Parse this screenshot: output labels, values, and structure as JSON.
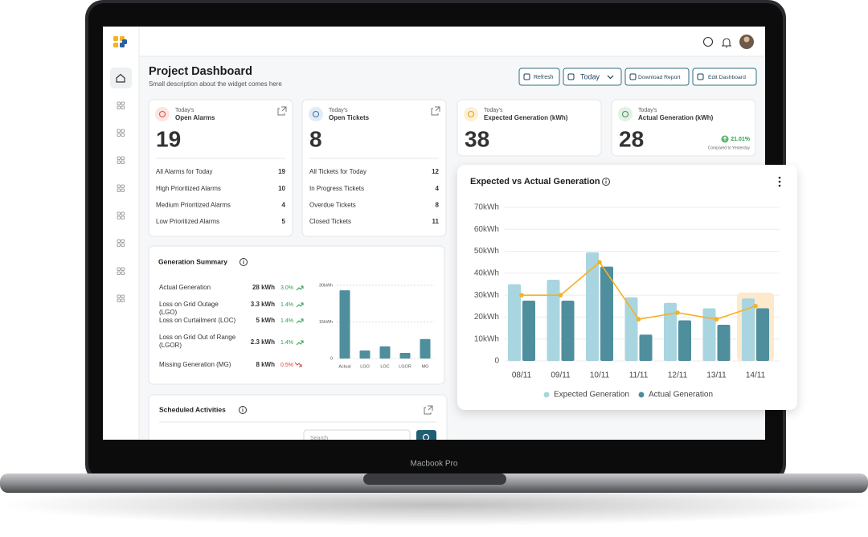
{
  "header": {
    "title": "Project Dashboard",
    "subtitle": "Small description about the widget comes here"
  },
  "toolbar": {
    "refresh": "Refresh",
    "date": "Today",
    "download": "Download Report",
    "edit": "Edit Dashboard"
  },
  "cards": [
    {
      "eyebrow": "Today's",
      "title": "Open Alarms",
      "value": 19,
      "rows": [
        {
          "label": "All Alarms for Today",
          "value": 19
        },
        {
          "label": "High Prioritized Alarms",
          "value": 10
        },
        {
          "label": "Medium Prioritized Alarms",
          "value": 4
        },
        {
          "label": "Low Prioritized Alarms",
          "value": 5
        }
      ]
    },
    {
      "eyebrow": "Today's",
      "title": "Open Tickets",
      "value": 8,
      "rows": [
        {
          "label": "All Tickets for Today",
          "value": 12
        },
        {
          "label": "In Progress Tickets",
          "value": 4
        },
        {
          "label": "Overdue Tickets",
          "value": 8
        },
        {
          "label": "Closed Tickets",
          "value": 11
        }
      ]
    },
    {
      "eyebrow": "Today's",
      "title": "Expected Generation (kWh)",
      "value": 38
    },
    {
      "eyebrow": "Today's",
      "title": "Actual Generation (kWh)",
      "value": 28,
      "change": "21.01%",
      "change_note": "Compared to Yesterday"
    }
  ],
  "generation_summary": {
    "title": "Generation Summary",
    "rows": [
      {
        "label": "Actual Generation",
        "value": "28 kWh",
        "change": "3.0%",
        "trend": "up"
      },
      {
        "label": "Loss on Grid Outage (LGO)",
        "value": "3.3 kWh",
        "change": "1.4%",
        "trend": "up"
      },
      {
        "label": "Loss on Curtailment (LOC)",
        "value": "5 kWh",
        "change": "1.4%",
        "trend": "up"
      },
      {
        "label": "Loss on Grid Out of Range (LGOR)",
        "value": "2.3 kWh",
        "change": "1.4%",
        "trend": "up"
      },
      {
        "label": "Missing Generation (MG)",
        "value": "8 kWh",
        "change": "0.5%",
        "trend": "down"
      }
    ]
  },
  "scheduled_activities": {
    "title": "Scheduled Activities",
    "search_placeholder": "Search"
  },
  "device": {
    "label": "Macbook Pro"
  },
  "chart_data": [
    {
      "type": "bar",
      "categories": [
        "Actual",
        "LGO",
        "LOC",
        "LGOR",
        "MG"
      ],
      "values": [
        28,
        3.3,
        5,
        2.3,
        8
      ],
      "color": "#4f8e9d",
      "ylim": [
        0,
        30
      ],
      "yticks": [
        0,
        {
          "value": 15,
          "label": "15kWh"
        },
        {
          "value": 30,
          "label": "30kWh"
        }
      ],
      "grid": true
    },
    {
      "type": "bar",
      "title": "Expected vs Actual Generation",
      "categories": [
        "08/11",
        "09/11",
        "10/11",
        "11/11",
        "12/11",
        "13/11",
        "14/11"
      ],
      "series": [
        {
          "name": "Expected Generation",
          "color": "#a9d5e0",
          "values": [
            35,
            37,
            49.5,
            29,
            26.5,
            24,
            28.5
          ]
        },
        {
          "name": "Actual Generation",
          "color": "#4f8e9d",
          "values": [
            27.5,
            27.5,
            43,
            12,
            18.5,
            16.5,
            24
          ]
        },
        {
          "type": "line",
          "color": "#f4b223",
          "values": [
            30,
            30,
            45,
            19,
            22,
            19,
            25
          ]
        }
      ],
      "ylim": [
        0,
        70
      ],
      "yticks": [
        0,
        {
          "value": 10,
          "label": "10kWh"
        },
        {
          "value": 20,
          "label": "20kWh"
        },
        {
          "value": 30,
          "label": "30kWh"
        },
        {
          "value": 40,
          "label": "40kWh"
        },
        {
          "value": 50,
          "label": "50kWh"
        },
        {
          "value": 60,
          "label": "60kWh"
        },
        {
          "value": 70,
          "label": "70kWh"
        }
      ],
      "grid": true
    }
  ]
}
